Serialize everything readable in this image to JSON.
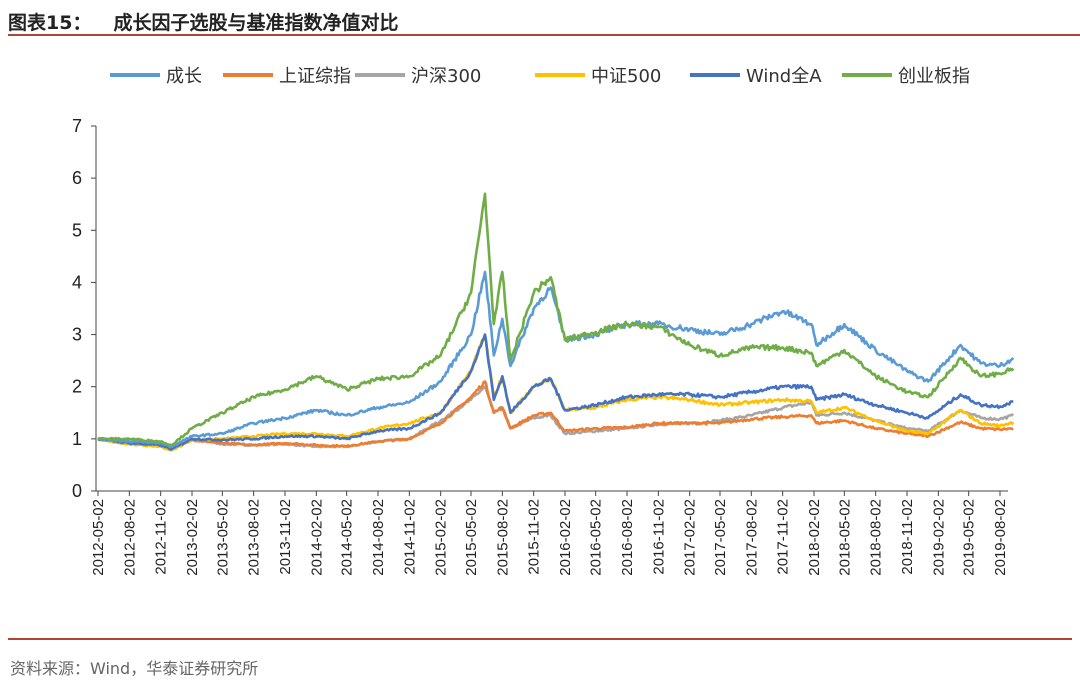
{
  "header": {
    "label": "图表15：",
    "title": "成长因子选股与基准指数净值对比"
  },
  "footer": {
    "source": "资料来源：Wind，华泰证券研究所"
  },
  "chart_data": {
    "type": "line",
    "title": "成长因子选股与基准指数净值对比",
    "xlabel": "",
    "ylabel": "",
    "ylim": [
      0,
      7
    ],
    "yticks": [
      "0",
      "1",
      "2",
      "3",
      "4",
      "5",
      "6",
      "7"
    ],
    "grid": false,
    "legend": "top",
    "xtick_labels": [
      "2012-05-02",
      "2012-08-02",
      "2012-11-02",
      "2013-02-02",
      "2013-05-02",
      "2013-08-02",
      "2013-11-02",
      "2014-02-02",
      "2014-05-02",
      "2014-08-02",
      "2014-11-02",
      "2015-02-02",
      "2015-05-02",
      "2015-08-02",
      "2015-11-02",
      "2016-02-02",
      "2016-05-02",
      "2016-08-02",
      "2016-11-02",
      "2017-02-02",
      "2017-05-02",
      "2017-08-02",
      "2017-11-02",
      "2018-02-02",
      "2018-05-02",
      "2018-08-02",
      "2018-11-02",
      "2019-02-02",
      "2019-05-02",
      "2019-08-02"
    ],
    "x": [
      "2012-05-02",
      "2012-08-02",
      "2012-11-02",
      "2012-12-04",
      "2013-02-02",
      "2013-05-02",
      "2013-08-02",
      "2013-11-02",
      "2014-02-02",
      "2014-05-02",
      "2014-08-02",
      "2014-11-02",
      "2015-02-02",
      "2015-05-02",
      "2015-06-12",
      "2015-07-08",
      "2015-08-02",
      "2015-08-26",
      "2015-11-02",
      "2015-12-22",
      "2016-02-02",
      "2016-05-02",
      "2016-08-02",
      "2016-11-02",
      "2017-02-02",
      "2017-05-02",
      "2017-08-02",
      "2017-11-02",
      "2018-01-25",
      "2018-02-09",
      "2018-05-02",
      "2018-08-02",
      "2018-11-02",
      "2019-01-03",
      "2019-04-08",
      "2019-06-06",
      "2019-08-02",
      "2019-09-10"
    ],
    "series": [
      {
        "name": "成长",
        "color": "#5b9bd5",
        "values": [
          1.0,
          0.95,
          0.92,
          0.85,
          1.05,
          1.1,
          1.3,
          1.4,
          1.55,
          1.45,
          1.6,
          1.7,
          2.1,
          3.0,
          4.2,
          2.6,
          3.3,
          2.4,
          3.5,
          3.9,
          2.9,
          3.0,
          3.2,
          3.2,
          3.1,
          3.0,
          3.2,
          3.45,
          3.2,
          2.8,
          3.2,
          2.7,
          2.3,
          2.1,
          2.8,
          2.45,
          2.4,
          2.55
        ]
      },
      {
        "name": "上证综指",
        "color": "#ed7d31",
        "values": [
          1.0,
          0.9,
          0.88,
          0.8,
          0.98,
          0.92,
          0.88,
          0.92,
          0.88,
          0.86,
          0.95,
          1.0,
          1.3,
          1.8,
          2.1,
          1.5,
          1.6,
          1.2,
          1.45,
          1.5,
          1.15,
          1.2,
          1.22,
          1.3,
          1.3,
          1.3,
          1.38,
          1.42,
          1.45,
          1.3,
          1.35,
          1.2,
          1.1,
          1.05,
          1.32,
          1.2,
          1.18,
          1.2
        ]
      },
      {
        "name": "沪深300",
        "color": "#a5a5a5",
        "values": [
          1.0,
          0.9,
          0.88,
          0.8,
          1.0,
          0.9,
          0.88,
          0.9,
          0.85,
          0.85,
          0.95,
          1.0,
          1.35,
          1.75,
          2.0,
          1.5,
          1.6,
          1.2,
          1.4,
          1.45,
          1.1,
          1.15,
          1.2,
          1.28,
          1.3,
          1.35,
          1.45,
          1.6,
          1.7,
          1.45,
          1.5,
          1.35,
          1.2,
          1.15,
          1.55,
          1.4,
          1.38,
          1.45
        ]
      },
      {
        "name": "中证500",
        "color": "#ffc000",
        "values": [
          1.0,
          0.9,
          0.85,
          0.78,
          0.98,
          1.0,
          1.05,
          1.1,
          1.1,
          1.05,
          1.2,
          1.3,
          1.5,
          2.3,
          3.0,
          1.8,
          2.2,
          1.5,
          2.0,
          2.15,
          1.55,
          1.6,
          1.75,
          1.8,
          1.75,
          1.65,
          1.7,
          1.75,
          1.72,
          1.5,
          1.6,
          1.35,
          1.15,
          1.1,
          1.55,
          1.3,
          1.25,
          1.32
        ]
      },
      {
        "name": "Wind全A",
        "color": "#4472c4",
        "values": [
          1.0,
          0.92,
          0.88,
          0.8,
          1.0,
          0.98,
          1.0,
          1.05,
          1.05,
          1.0,
          1.15,
          1.2,
          1.5,
          2.3,
          3.0,
          1.75,
          2.2,
          1.5,
          2.0,
          2.15,
          1.55,
          1.65,
          1.8,
          1.85,
          1.85,
          1.8,
          1.9,
          2.0,
          2.0,
          1.75,
          1.85,
          1.65,
          1.5,
          1.4,
          1.85,
          1.65,
          1.62,
          1.72
        ]
      },
      {
        "name": "创业板指",
        "color": "#70ad47",
        "values": [
          1.0,
          1.0,
          0.95,
          0.88,
          1.2,
          1.5,
          1.8,
          1.95,
          2.2,
          1.95,
          2.15,
          2.2,
          2.6,
          3.8,
          5.7,
          3.2,
          4.2,
          2.5,
          3.8,
          4.1,
          2.9,
          3.05,
          3.2,
          3.15,
          2.8,
          2.6,
          2.75,
          2.75,
          2.65,
          2.4,
          2.7,
          2.2,
          1.9,
          1.8,
          2.55,
          2.2,
          2.25,
          2.35
        ]
      }
    ]
  }
}
